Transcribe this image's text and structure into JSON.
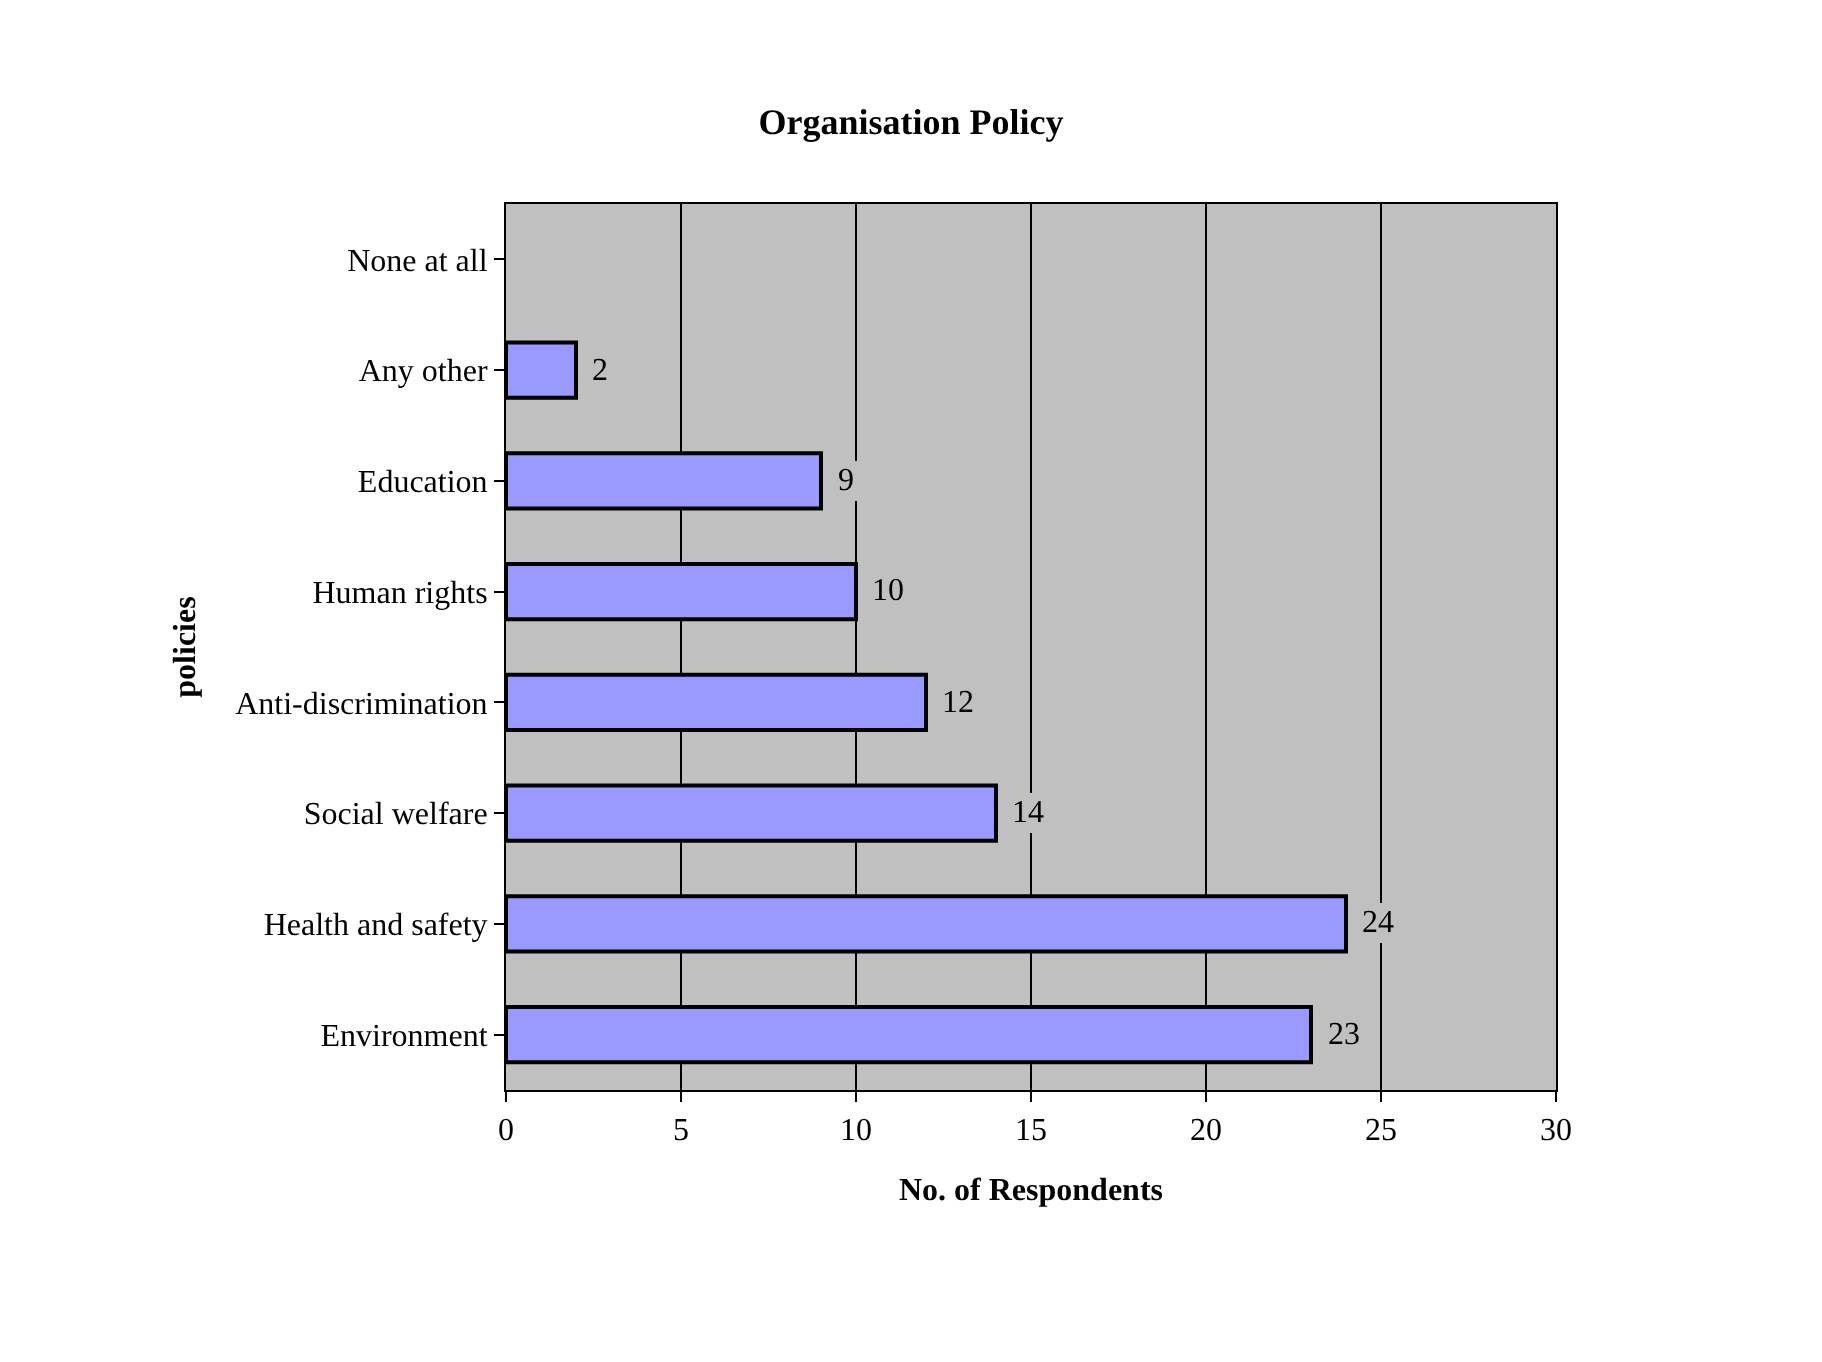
{
  "chart_data": {
    "type": "bar",
    "orientation": "horizontal",
    "title": "Organisation Policy",
    "xlabel": "No. of Respondents",
    "ylabel": "policies",
    "categories": [
      "None at all",
      "Any other",
      "Education",
      "Human rights",
      "Anti-discrimination",
      "Social welfare",
      "Health and safety",
      "Environment"
    ],
    "values": [
      null,
      2,
      9,
      10,
      12,
      14,
      24,
      23
    ],
    "value_labels": [
      null,
      "2",
      "9",
      "10",
      "12",
      "14",
      "24",
      "23"
    ],
    "color": "#9999ff",
    "xlim": [
      0,
      30
    ],
    "xticks": [
      0,
      5,
      10,
      15,
      20,
      25,
      30
    ],
    "grid": "x",
    "legend": false
  }
}
